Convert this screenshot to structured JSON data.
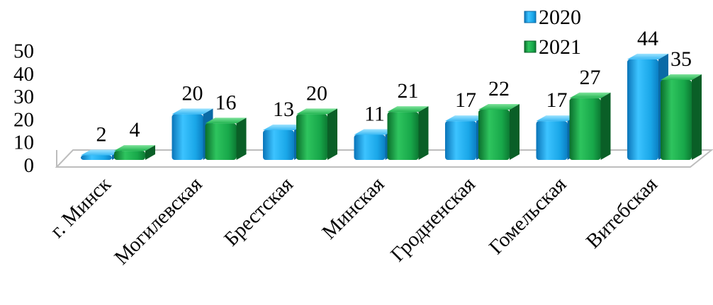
{
  "chart_data": {
    "type": "bar",
    "categories": [
      "г. Минск",
      "Могилевская",
      "Брестская",
      "Минская",
      "Гродненская",
      "Гомельская",
      "Витебская"
    ],
    "series": [
      {
        "name": "2020",
        "values": [
          2,
          20,
          13,
          11,
          17,
          17,
          44
        ],
        "color": "#1aa7e8"
      },
      {
        "name": "2021",
        "values": [
          4,
          16,
          20,
          21,
          22,
          27,
          35
        ],
        "color": "#18a84a"
      }
    ],
    "yticks": [
      "0",
      "10",
      "20",
      "30",
      "40",
      "50"
    ],
    "ylim": [
      0,
      50
    ],
    "grid": false,
    "legend": "top-right",
    "data_labels": true
  }
}
